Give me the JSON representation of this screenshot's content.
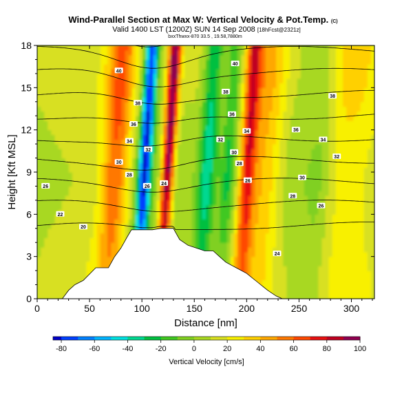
{
  "title": {
    "main": "Wind-Parallel Section at Max W: Vertical Velocity & Pot.Temp.",
    "copyright": "(C)",
    "valid": "Valid 1400 LST (1200Z) SUN 14 Sep 2008",
    "forecast": "[18hFcst@2321z]",
    "tiny": "bxxThwxx-870  33.5 , 19.58,7880m"
  },
  "chart_data": {
    "type": "heatmap",
    "xlabel": "Distance [nm]",
    "ylabel": "Height [Kft MSL]",
    "xlim": [
      0,
      322
    ],
    "ylim": [
      0,
      18
    ],
    "x_ticks": [
      "0",
      "50",
      "100",
      "150",
      "200",
      "250",
      "300"
    ],
    "y_ticks": [
      "0",
      "3",
      "6",
      "9",
      "12",
      "15",
      "18"
    ],
    "colorbar": {
      "title": "Vertical Velocity [cm/s]",
      "ticks": [
        "-80",
        "-60",
        "-40",
        "-20",
        "0",
        "20",
        "40",
        "60",
        "80",
        "100"
      ],
      "bins": [
        -85,
        -80,
        -70,
        -60,
        -50,
        -40,
        -30,
        -20,
        -10,
        0,
        10,
        20,
        30,
        40,
        50,
        60,
        70,
        80,
        90,
        100
      ],
      "colors": [
        "#0000c8",
        "#0040ff",
        "#0080ff",
        "#00b4ff",
        "#00e0e0",
        "#00d890",
        "#00c040",
        "#40c820",
        "#80d020",
        "#a8d820",
        "#d8e020",
        "#f8f000",
        "#ffd000",
        "#ffa800",
        "#ff7800",
        "#ff4800",
        "#e81010",
        "#c00020",
        "#900050"
      ]
    },
    "updrafts": [
      {
        "x": 72,
        "w": 14,
        "value": 55
      },
      {
        "x": 122,
        "w": 6,
        "value": 95
      },
      {
        "x": 198,
        "w": 7,
        "value": 50
      },
      {
        "x": 212,
        "w": 20,
        "value": 35
      },
      {
        "x": 290,
        "w": 26,
        "value": 20
      }
    ],
    "downdrafts": [
      {
        "x": 100,
        "w": 6,
        "value": -85
      },
      {
        "x": 160,
        "w": 9,
        "value": -45
      },
      {
        "x": 180,
        "w": 8,
        "value": -35
      },
      {
        "x": 268,
        "w": 10,
        "value": -10
      }
    ],
    "terrain": [
      [
        0,
        0
      ],
      [
        24,
        0
      ],
      [
        26,
        0.2
      ],
      [
        30,
        0.6
      ],
      [
        36,
        1.0
      ],
      [
        44,
        1.3
      ],
      [
        48,
        1.6
      ],
      [
        56,
        2.2
      ],
      [
        62,
        2.2
      ],
      [
        68,
        2.2
      ],
      [
        74,
        3.0
      ],
      [
        80,
        3.6
      ],
      [
        86,
        4.4
      ],
      [
        90,
        4.9
      ],
      [
        100,
        4.9
      ],
      [
        110,
        4.9
      ],
      [
        118,
        5.0
      ],
      [
        130,
        5.0
      ],
      [
        136,
        4.2
      ],
      [
        144,
        3.8
      ],
      [
        152,
        3.6
      ],
      [
        160,
        3.4
      ],
      [
        168,
        3.4
      ],
      [
        174,
        3.0
      ],
      [
        180,
        2.6
      ],
      [
        190,
        2.2
      ],
      [
        200,
        1.8
      ],
      [
        210,
        1.2
      ],
      [
        220,
        0.6
      ],
      [
        228,
        0.2
      ],
      [
        234,
        0
      ],
      [
        322,
        0
      ]
    ],
    "isentropes": {
      "levels": [
        20,
        22,
        24,
        26,
        28,
        30,
        32,
        34,
        36,
        38,
        40,
        42,
        44
      ],
      "labels": [
        {
          "text": "40",
          "x": 78,
          "y": 16.2
        },
        {
          "text": "38",
          "x": 96,
          "y": 13.9
        },
        {
          "text": "36",
          "x": 92,
          "y": 12.4
        },
        {
          "text": "34",
          "x": 88,
          "y": 11.2
        },
        {
          "text": "32",
          "x": 106,
          "y": 10.6
        },
        {
          "text": "30",
          "x": 78,
          "y": 9.7
        },
        {
          "text": "28",
          "x": 88,
          "y": 8.8
        },
        {
          "text": "26",
          "x": 105,
          "y": 8.0
        },
        {
          "text": "24",
          "x": 121,
          "y": 8.2
        },
        {
          "text": "26",
          "x": 8,
          "y": 8.0
        },
        {
          "text": "22",
          "x": 22,
          "y": 6.0
        },
        {
          "text": "20",
          "x": 44,
          "y": 5.1
        },
        {
          "text": "40",
          "x": 189,
          "y": 16.7
        },
        {
          "text": "38",
          "x": 180,
          "y": 14.7
        },
        {
          "text": "36",
          "x": 186,
          "y": 13.1
        },
        {
          "text": "34",
          "x": 200,
          "y": 11.9
        },
        {
          "text": "32",
          "x": 175,
          "y": 11.3
        },
        {
          "text": "30",
          "x": 188,
          "y": 10.4
        },
        {
          "text": "28",
          "x": 193,
          "y": 9.6
        },
        {
          "text": "26",
          "x": 201,
          "y": 8.4
        },
        {
          "text": "36",
          "x": 247,
          "y": 12.0
        },
        {
          "text": "34",
          "x": 273,
          "y": 11.3
        },
        {
          "text": "32",
          "x": 286,
          "y": 10.1
        },
        {
          "text": "30",
          "x": 253,
          "y": 8.6
        },
        {
          "text": "28",
          "x": 244,
          "y": 7.3
        },
        {
          "text": "26",
          "x": 271,
          "y": 6.6
        },
        {
          "text": "24",
          "x": 229,
          "y": 3.2
        },
        {
          "text": "38",
          "x": 282,
          "y": 14.4
        }
      ]
    }
  }
}
